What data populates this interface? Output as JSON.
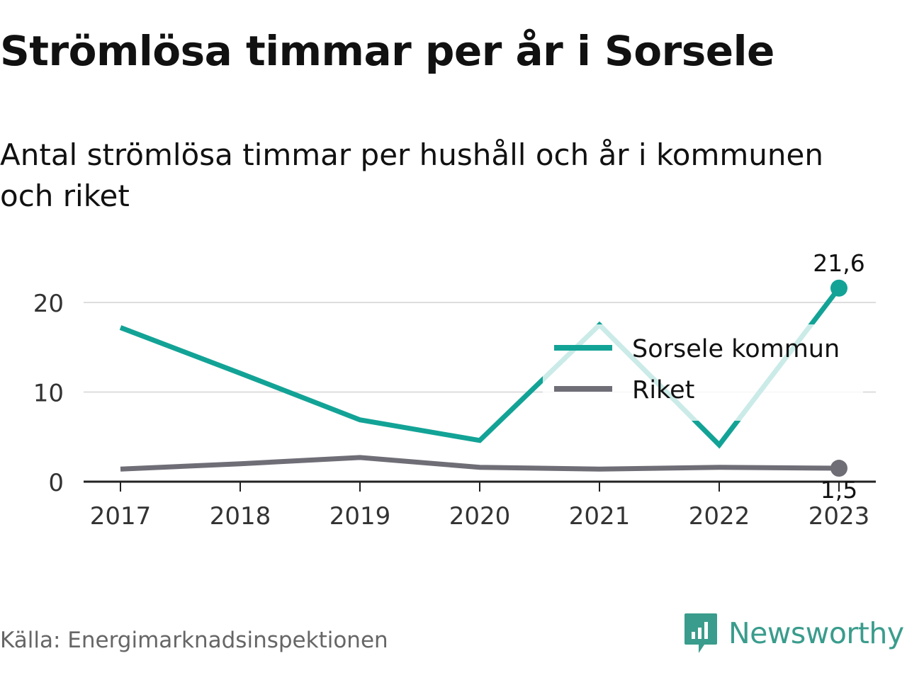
{
  "title": "Strömlösa timmar per år i Sorsele",
  "subtitle": "Antal strömlösa timmar per hushåll och år i kommunen och riket",
  "source": "Källa: Energimarknadsinspektionen",
  "brand": {
    "name": "Newsworthy",
    "icon": "newsworthy-logo-icon",
    "color": "#3a9c8c"
  },
  "chart_data": {
    "type": "line",
    "x": [
      "2017",
      "2018",
      "2019",
      "2020",
      "2021",
      "2022",
      "2023"
    ],
    "ylim": [
      0,
      23
    ],
    "yticks": [
      0,
      10,
      20
    ],
    "ytick_labels": [
      "0",
      "10",
      "20"
    ],
    "grid": true,
    "legend_position": "right",
    "series": [
      {
        "name": "Sorsele kommun",
        "color": "#12a396",
        "values": [
          17.2,
          12.1,
          6.9,
          4.6,
          17.5,
          4.1,
          21.6
        ],
        "end_label": "21,6"
      },
      {
        "name": "Riket",
        "color": "#6f6e77",
        "values": [
          1.4,
          2.0,
          2.7,
          1.6,
          1.4,
          1.6,
          1.5
        ],
        "end_label": "1,5"
      }
    ]
  }
}
